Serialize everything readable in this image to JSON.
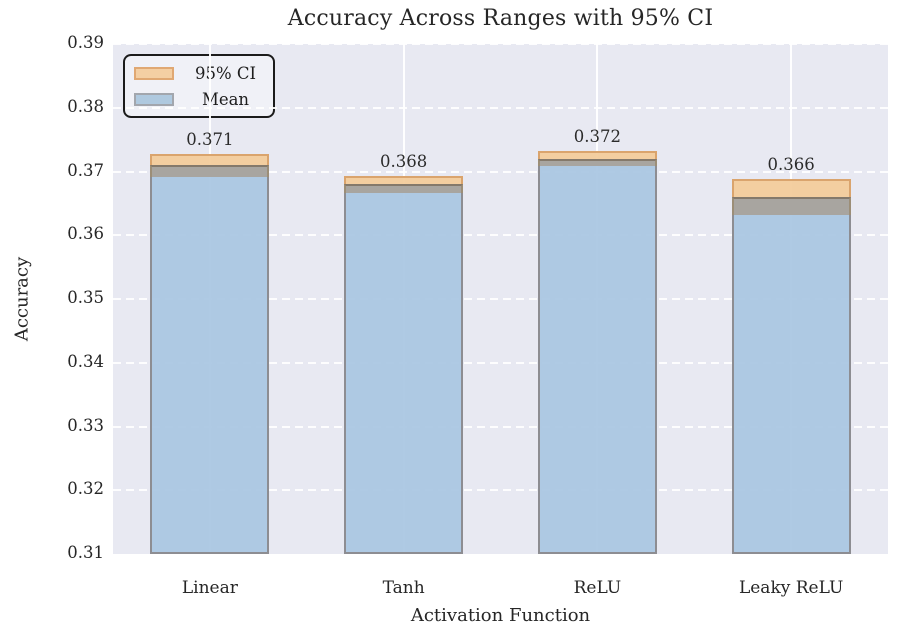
{
  "title": "Accuracy Across Ranges with 95% CI",
  "chart_data": {
    "type": "bar",
    "title": "Accuracy Across Ranges with 95% CI",
    "xlabel": "Activation Function",
    "ylabel": "Accuracy",
    "categories": [
      "Linear",
      "Tanh",
      "ReLU",
      "Leaky ReLU"
    ],
    "values": [
      0.371,
      0.368,
      0.372,
      0.366
    ],
    "ci_95": [
      0.0018,
      0.0013,
      0.0012,
      0.0028
    ],
    "bar_value_labels": [
      "0.371",
      "0.368",
      "0.372",
      "0.366"
    ],
    "ylim": [
      0.31,
      0.39
    ],
    "yticks": [
      "0.39",
      "0.38",
      "0.37",
      "0.36",
      "0.35",
      "0.34",
      "0.33",
      "0.32",
      "0.31"
    ],
    "grid": {
      "horizontal": "white dashed",
      "vertical": "white solid"
    },
    "legend": {
      "position": "upper left",
      "entries": [
        {
          "label": "95% CI",
          "color": "#f4cfa3"
        },
        {
          "label": "Mean",
          "color": "#afc9df"
        }
      ]
    },
    "colors": {
      "plot_background": "#e8e9f2",
      "mean_bar_fill": "#a9c6e2",
      "mean_bar_edge": "#8d8d92",
      "ci_band_fill": "#f3cb9a",
      "ci_band_edge": "#daa46d",
      "ci_overlap_band": "#a8a5a0",
      "text": "#262626"
    }
  }
}
